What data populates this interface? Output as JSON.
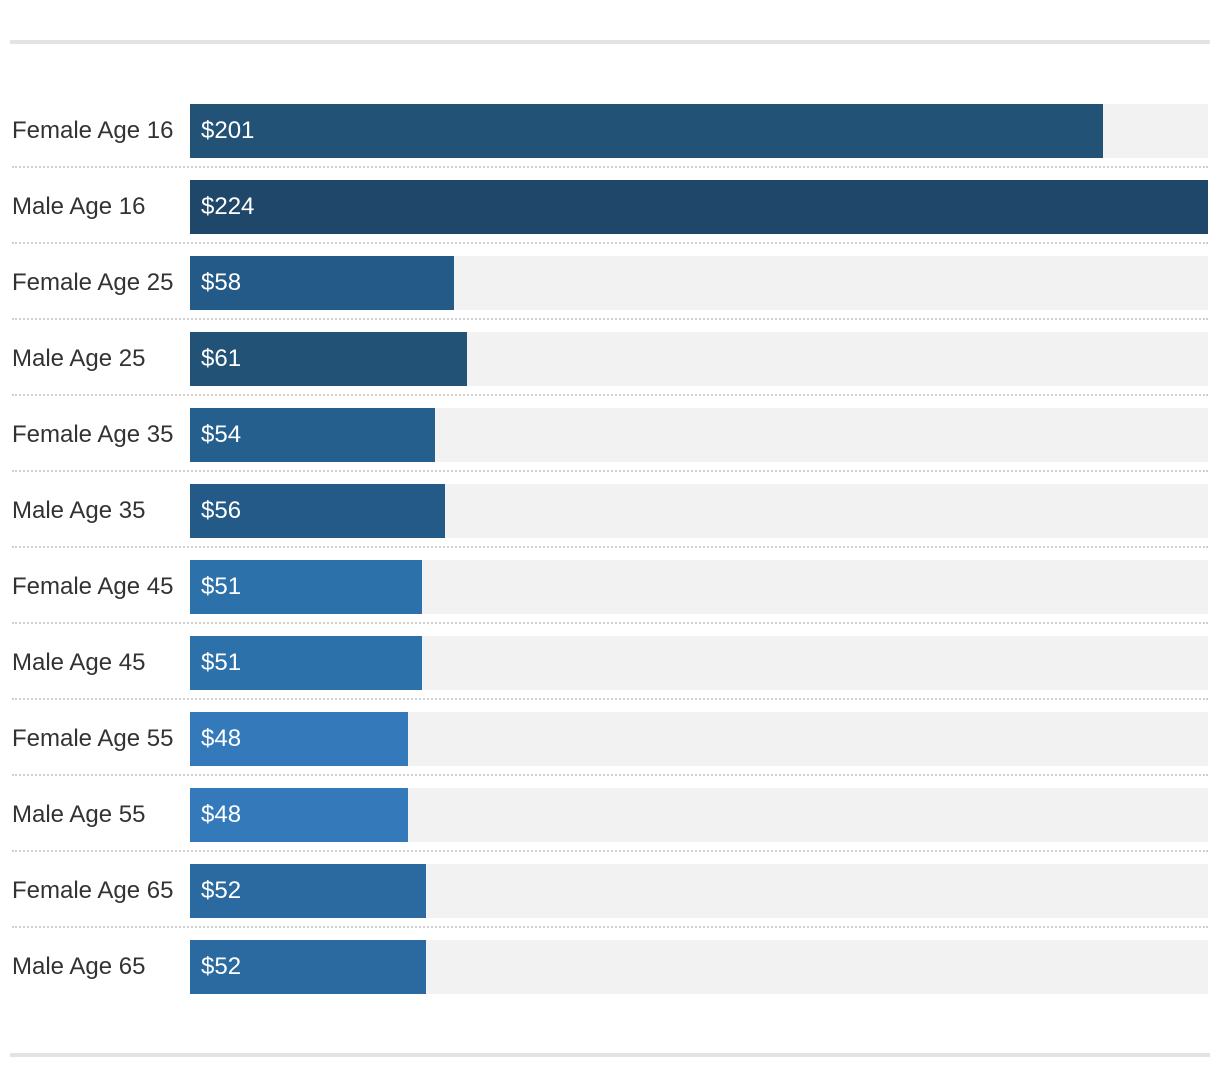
{
  "chart_data": {
    "type": "bar",
    "orientation": "horizontal",
    "categories": [
      "Female Age 16",
      "Male Age 16",
      "Female Age 25",
      "Male Age 25",
      "Female Age 35",
      "Male Age 35",
      "Female Age 45",
      "Male Age 45",
      "Female Age 55",
      "Male Age 55",
      "Female Age 65",
      "Male Age 65"
    ],
    "values": [
      201,
      224,
      58,
      61,
      54,
      56,
      51,
      51,
      48,
      48,
      52,
      52
    ],
    "value_labels": [
      "$201",
      "$224",
      "$58",
      "$61",
      "$54",
      "$56",
      "$51",
      "$51",
      "$48",
      "$48",
      "$52",
      "$52"
    ],
    "bar_colors": [
      "#235277",
      "#1f4769",
      "#245a87",
      "#235277",
      "#255f8e",
      "#245a87",
      "#2d71aa",
      "#2d71aa",
      "#347abb",
      "#347abb",
      "#2a6aa0",
      "#2a6aa0"
    ],
    "track_color": "#f2f2f2",
    "xlim": [
      0,
      224
    ],
    "grid": false,
    "legend": "none"
  }
}
